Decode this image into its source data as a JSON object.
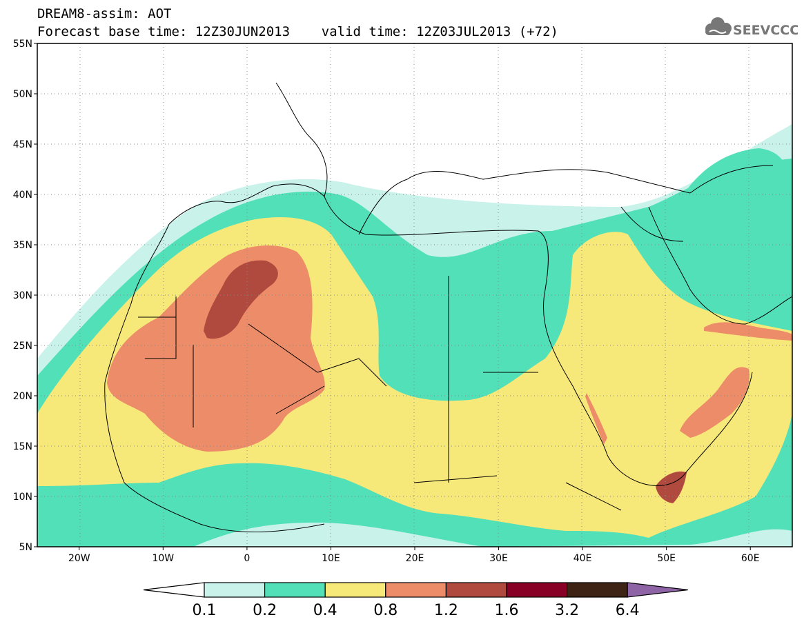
{
  "header": {
    "line1": "DREAM8-assim: AOT",
    "line2": "Forecast base time: 12Z30JUN2013    valid time: 12Z03JUL2013 (+72)"
  },
  "logo": {
    "text": "SEEVCCC"
  },
  "map": {
    "lon_range": [
      -25,
      65
    ],
    "lat_range": [
      5,
      55
    ],
    "lat_ticks": [
      {
        "value": 55,
        "label": "55N"
      },
      {
        "value": 50,
        "label": "50N"
      },
      {
        "value": 45,
        "label": "45N"
      },
      {
        "value": 40,
        "label": "40N"
      },
      {
        "value": 35,
        "label": "35N"
      },
      {
        "value": 30,
        "label": "30N"
      },
      {
        "value": 25,
        "label": "25N"
      },
      {
        "value": 20,
        "label": "20N"
      },
      {
        "value": 15,
        "label": "15N"
      },
      {
        "value": 10,
        "label": "10N"
      },
      {
        "value": 5,
        "label": "5N"
      }
    ],
    "lon_ticks": [
      {
        "value": -20,
        "label": "20W"
      },
      {
        "value": -10,
        "label": "10W"
      },
      {
        "value": 0,
        "label": "0"
      },
      {
        "value": 10,
        "label": "10E"
      },
      {
        "value": 20,
        "label": "20E"
      },
      {
        "value": 30,
        "label": "30E"
      },
      {
        "value": 40,
        "label": "40E"
      },
      {
        "value": 50,
        "label": "50E"
      },
      {
        "value": 60,
        "label": "60E"
      }
    ]
  },
  "colorbar": {
    "levels": [
      "0.1",
      "0.2",
      "0.4",
      "0.8",
      "1.2",
      "1.6",
      "3.2",
      "6.4"
    ],
    "colors": [
      "#c8f2ea",
      "#52e0b8",
      "#f7e87a",
      "#ec8c68",
      "#b04a3e",
      "#880026",
      "#3e2414",
      "#8e64a6"
    ],
    "low_color": "#ffffff"
  }
}
